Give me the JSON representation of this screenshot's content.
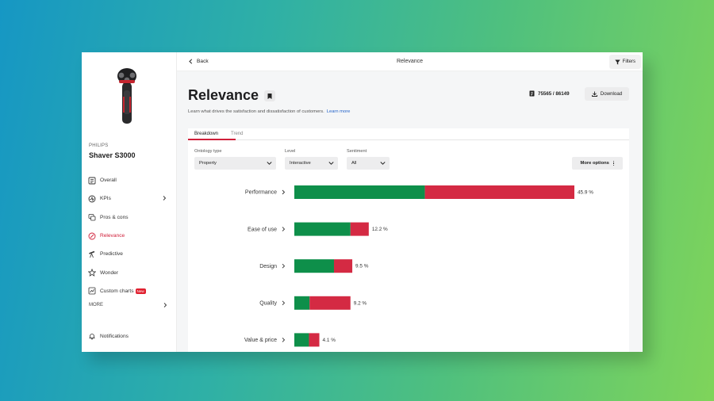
{
  "header": {
    "back_label": "Back",
    "title": "Relevance",
    "filters_label": "Filters"
  },
  "sidebar": {
    "brand": "PHILIPS",
    "product_name": "Shaver S3000",
    "items": [
      {
        "label": "Overall",
        "icon": "overall-icon",
        "active": false
      },
      {
        "label": "KPIs",
        "icon": "kpis-icon",
        "active": false,
        "has_submenu": true
      },
      {
        "label": "Pros & cons",
        "icon": "pros-cons-icon",
        "active": false
      },
      {
        "label": "Relevance",
        "icon": "relevance-icon",
        "active": true
      },
      {
        "label": "Predictive",
        "icon": "predictive-icon",
        "active": false
      },
      {
        "label": "Wonder",
        "icon": "wonder-icon",
        "active": false
      },
      {
        "label": "Custom charts",
        "icon": "custom-charts-icon",
        "active": false,
        "badge": "New"
      }
    ],
    "more_label": "MORE",
    "notifications_label": "Notifications"
  },
  "page": {
    "title": "Relevance",
    "subtitle": "Learn what drives the satisfaction and dissatisfaction of customers.",
    "learn_more": "Learn more",
    "count": "75565 / 86149",
    "download_label": "Download"
  },
  "tabs": [
    {
      "label": "Breakdown",
      "active": true
    },
    {
      "label": "Trend",
      "active": false
    }
  ],
  "filters": {
    "ontology_type": {
      "label": "Ontology type",
      "value": "Property"
    },
    "level": {
      "label": "Level",
      "value": "Interactive"
    },
    "sentiment": {
      "label": "Sentiment",
      "value": "All"
    },
    "more_options_label": "More options"
  },
  "colors": {
    "positive": "#0e8f4a",
    "negative": "#d42a43",
    "accent": "#d0203a"
  },
  "chart_data": {
    "type": "bar",
    "orientation": "horizontal",
    "stacked": true,
    "categories": [
      "Performance",
      "Ease of use",
      "Design",
      "Quality",
      "Value & price"
    ],
    "totals": [
      45.9,
      12.2,
      9.5,
      9.2,
      4.1
    ],
    "value_labels": [
      "45.9 %",
      "12.2 %",
      "9.5 %",
      "9.2 %",
      "4.1 %"
    ],
    "series": [
      {
        "values": [
          21.4,
          9.2,
          6.5,
          2.5,
          2.4
        ],
        "color": "#0e8f4a"
      },
      {
        "values": [
          24.5,
          3.0,
          3.0,
          6.7,
          1.7
        ],
        "color": "#d42a43"
      }
    ],
    "xlim": [
      0,
      45.9
    ]
  }
}
